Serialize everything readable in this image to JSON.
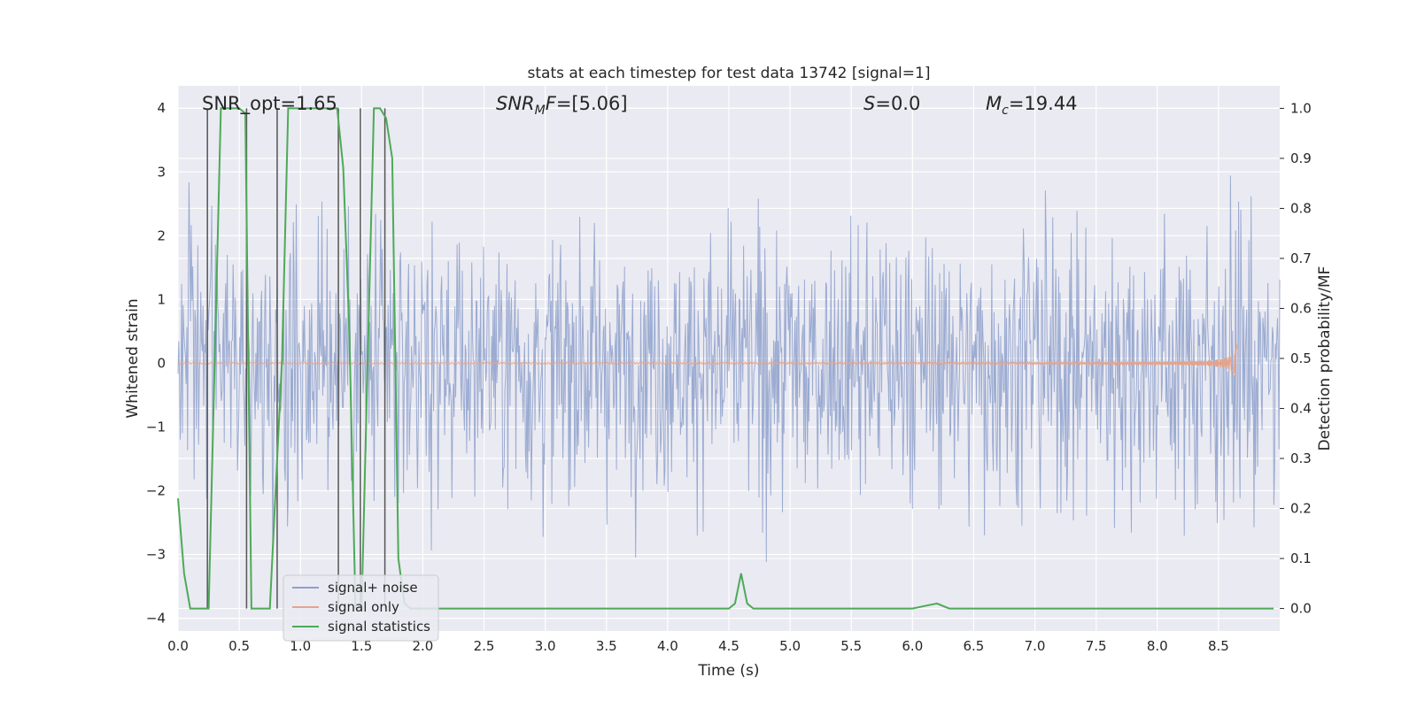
{
  "chart_data": {
    "type": "line",
    "title": "stats at each timestep for test data 13742 [signal=1]",
    "xlabel": "Time (s)",
    "ylabel": "Whitened strain",
    "y2label": "Detection probability/MF",
    "xlim": [
      0,
      9.0
    ],
    "ylim": [
      -4.2,
      4.35
    ],
    "y2lim": [
      -0.045,
      1.045
    ],
    "grid": true,
    "legend_position": "lower-left",
    "x_ticks": [
      "0.0",
      "0.5",
      "1.0",
      "1.5",
      "2.0",
      "2.5",
      "3.0",
      "3.5",
      "4.0",
      "4.5",
      "5.0",
      "5.5",
      "6.0",
      "6.5",
      "7.0",
      "7.5",
      "8.0",
      "8.5"
    ],
    "x_tick_values": [
      0,
      0.5,
      1.0,
      1.5,
      2.0,
      2.5,
      3.0,
      3.5,
      4.0,
      4.5,
      5.0,
      5.5,
      6.0,
      6.5,
      7.0,
      7.5,
      8.0,
      8.5
    ],
    "y_ticks": [
      "−4",
      "−3",
      "−2",
      "−1",
      "0",
      "1",
      "2",
      "3",
      "4"
    ],
    "y_tick_values": [
      -4,
      -3,
      -2,
      -1,
      0,
      1,
      2,
      3,
      4
    ],
    "y2_ticks": [
      "0.0",
      "0.1",
      "0.2",
      "0.3",
      "0.4",
      "0.5",
      "0.6",
      "0.7",
      "0.8",
      "0.9",
      "1.0"
    ],
    "y2_tick_values": [
      0,
      0.1,
      0.2,
      0.3,
      0.4,
      0.5,
      0.6,
      0.7,
      0.8,
      0.9,
      1.0
    ],
    "annotations": {
      "snr_opt": "SNR_opt=1.65",
      "snr_mf_math": "SNR",
      "snr_mf_sub": "M",
      "snr_mf_math2": "F",
      "snr_mf_rest": "=[5.06]",
      "s_math": "S",
      "s_rest": "=0.0",
      "mc_math": "M",
      "mc_sub": "c",
      "mc_rest": "=19.44"
    },
    "series": [
      {
        "name": "signal+ noise",
        "color": "#8da0cb",
        "kind": "noise",
        "envelope_samples": {
          "x": [
            0,
            0.5,
            1.0,
            1.5,
            2.0,
            2.5,
            3.0,
            3.5,
            4.0,
            4.5,
            5.0,
            5.5,
            6.0,
            6.5,
            7.0,
            7.5,
            8.0,
            8.5,
            9.0
          ],
          "upper": [
            2.8,
            3.0,
            3.3,
            3.4,
            2.9,
            2.6,
            3.1,
            3.0,
            2.8,
            3.0,
            3.3,
            3.0,
            3.2,
            3.1,
            3.8,
            3.3,
            3.0,
            3.2,
            2.9
          ],
          "lower": [
            -3.6,
            -3.0,
            -3.2,
            -3.0,
            -3.3,
            -3.5,
            -3.4,
            -3.0,
            -3.1,
            -3.3,
            -3.0,
            -3.0,
            -3.1,
            -2.9,
            -3.2,
            -3.3,
            -3.1,
            -3.8,
            -3.4
          ]
        }
      },
      {
        "name": "signal only",
        "color": "#e5a38a",
        "kind": "chirp",
        "merger_time": 8.65,
        "peak_amplitude": 0.35
      },
      {
        "name": "signal statistics",
        "color": "#4daa57",
        "kind": "probability",
        "x": [
          0.0,
          0.05,
          0.1,
          0.25,
          0.3,
          0.35,
          0.45,
          0.5,
          0.55,
          0.6,
          0.7,
          0.75,
          0.85,
          0.9,
          1.3,
          1.35,
          1.4,
          1.45,
          1.5,
          1.55,
          1.6,
          1.65,
          1.7,
          1.75,
          1.8,
          1.85,
          1.9,
          2.0,
          4.5,
          4.55,
          4.6,
          4.65,
          4.7,
          4.75,
          4.8,
          6.0,
          6.1,
          6.2,
          6.3,
          8.95
        ],
        "y": [
          0.22,
          0.07,
          0.0,
          0.0,
          0.5,
          1.0,
          1.0,
          1.0,
          0.99,
          0.0,
          0.0,
          0.0,
          0.5,
          1.0,
          1.0,
          0.88,
          0.55,
          0.0,
          0.0,
          0.5,
          1.0,
          1.0,
          0.98,
          0.9,
          0.1,
          0.01,
          0.0,
          0.0,
          0.0,
          0.01,
          0.07,
          0.01,
          0.0,
          0.0,
          0.0,
          0.0,
          0.005,
          0.01,
          0.0,
          0.0
        ]
      },
      {
        "name": "",
        "color": "#555555",
        "kind": "matched-filter-markers",
        "x": [
          0.24,
          0.56,
          0.81,
          1.31,
          1.49,
          1.69
        ],
        "y_top": [
          1.0,
          1.0,
          1.0,
          1.0,
          1.0,
          1.0
        ],
        "y_bottom": [
          0.0,
          0.0,
          0.0,
          0.0,
          0.0,
          0.0
        ]
      }
    ]
  }
}
